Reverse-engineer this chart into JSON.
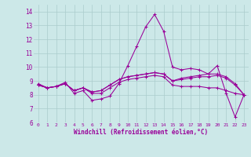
{
  "xlabel": "Windchill (Refroidissement éolien,°C)",
  "background_color": "#cce8e8",
  "grid_color": "#aacccc",
  "line_color": "#990099",
  "ylim": [
    6,
    14.5
  ],
  "yticks": [
    6,
    7,
    8,
    9,
    10,
    11,
    12,
    13,
    14
  ],
  "xticks": [
    0,
    1,
    2,
    3,
    4,
    5,
    6,
    7,
    8,
    9,
    10,
    11,
    12,
    13,
    14,
    15,
    16,
    17,
    18,
    19,
    20,
    21,
    22,
    23
  ],
  "series": [
    [
      8.8,
      8.5,
      8.6,
      8.9,
      8.1,
      8.3,
      7.6,
      7.7,
      7.9,
      8.8,
      10.1,
      11.5,
      12.9,
      13.8,
      12.6,
      10.0,
      9.8,
      9.9,
      9.8,
      9.5,
      10.1,
      8.1,
      6.4,
      8.0
    ],
    [
      8.7,
      8.5,
      8.6,
      8.8,
      8.3,
      8.5,
      8.1,
      8.1,
      8.5,
      8.9,
      9.1,
      9.2,
      9.3,
      9.4,
      9.3,
      8.7,
      8.6,
      8.6,
      8.6,
      8.5,
      8.5,
      8.3,
      8.1,
      8.0
    ],
    [
      8.7,
      8.5,
      8.6,
      8.8,
      8.3,
      8.5,
      8.2,
      8.3,
      8.7,
      9.1,
      9.3,
      9.4,
      9.5,
      9.6,
      9.5,
      9.0,
      9.1,
      9.2,
      9.3,
      9.3,
      9.4,
      9.2,
      8.7,
      8.0
    ],
    [
      8.7,
      8.5,
      8.6,
      8.8,
      8.3,
      8.5,
      8.2,
      8.3,
      8.7,
      9.1,
      9.3,
      9.4,
      9.5,
      9.6,
      9.5,
      9.0,
      9.2,
      9.3,
      9.4,
      9.5,
      9.5,
      9.3,
      8.8,
      8.0
    ]
  ]
}
